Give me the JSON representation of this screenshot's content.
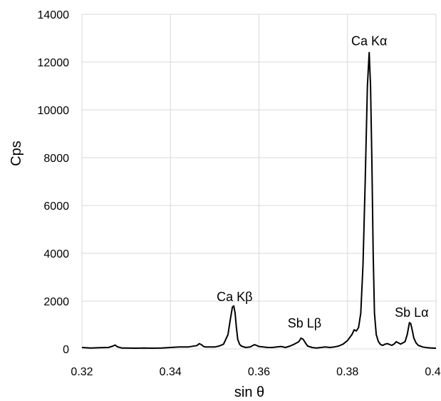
{
  "chart_data": {
    "type": "line",
    "xlabel": "sin θ",
    "ylabel": "Cps",
    "xlim": [
      0.32,
      0.4
    ],
    "ylim": [
      0,
      14000
    ],
    "xticks": [
      0.32,
      0.34,
      0.36,
      0.38,
      0.4
    ],
    "xtick_labels": [
      "0.32",
      "0.34",
      "0.36",
      "0.38",
      "0.40"
    ],
    "yticks": [
      0,
      2000,
      4000,
      6000,
      8000,
      10000,
      12000,
      14000
    ],
    "ytick_labels": [
      "0",
      "2000",
      "4000",
      "6000",
      "8000",
      "10000",
      "12000",
      "14000"
    ],
    "grid": true,
    "series": [
      {
        "x": [
          0.32,
          0.322,
          0.324,
          0.326,
          0.327,
          0.3275,
          0.328,
          0.329,
          0.33,
          0.332,
          0.334,
          0.336,
          0.338,
          0.34,
          0.342,
          0.344,
          0.346,
          0.3465,
          0.347,
          0.3475,
          0.348,
          0.349,
          0.35,
          0.351,
          0.352,
          0.353,
          0.3535,
          0.354,
          0.3543,
          0.3546,
          0.3549,
          0.3552,
          0.3556,
          0.356,
          0.357,
          0.358,
          0.359,
          0.36,
          0.361,
          0.362,
          0.363,
          0.364,
          0.365,
          0.366,
          0.367,
          0.368,
          0.369,
          0.3695,
          0.37,
          0.3705,
          0.371,
          0.372,
          0.373,
          0.374,
          0.375,
          0.376,
          0.377,
          0.378,
          0.379,
          0.38,
          0.381,
          0.3815,
          0.382,
          0.3825,
          0.383,
          0.3835,
          0.384,
          0.3845,
          0.3849,
          0.3852,
          0.3855,
          0.3858,
          0.3861,
          0.3865,
          0.387,
          0.3875,
          0.388,
          0.3885,
          0.389,
          0.39,
          0.3905,
          0.391,
          0.392,
          0.393,
          0.3935,
          0.394,
          0.3943,
          0.3946,
          0.395,
          0.3955,
          0.396,
          0.397,
          0.398,
          0.399,
          0.4
        ],
        "y": [
          60,
          40,
          50,
          60,
          120,
          160,
          90,
          40,
          40,
          30,
          40,
          30,
          40,
          60,
          80,
          80,
          140,
          220,
          180,
          100,
          80,
          80,
          80,
          120,
          200,
          600,
          1200,
          1750,
          1800,
          1500,
          900,
          400,
          200,
          120,
          60,
          80,
          180,
          100,
          80,
          60,
          60,
          80,
          100,
          60,
          120,
          200,
          300,
          450,
          400,
          250,
          120,
          60,
          40,
          60,
          80,
          60,
          80,
          120,
          200,
          350,
          600,
          800,
          750,
          900,
          1500,
          3500,
          7000,
          11000,
          12400,
          11000,
          8000,
          4000,
          1500,
          600,
          300,
          180,
          150,
          200,
          220,
          150,
          200,
          300,
          200,
          300,
          600,
          1100,
          1050,
          800,
          450,
          250,
          150,
          80,
          50,
          40,
          30
        ]
      }
    ],
    "annotations": [
      {
        "text": "Ca Kβ",
        "x": 0.3545,
        "y": 2000
      },
      {
        "text": "Sb Lβ",
        "x": 0.3703,
        "y": 900
      },
      {
        "text": "Ca Kα",
        "x": 0.3849,
        "y": 12700
      },
      {
        "text": "Sb Lα",
        "x": 0.3945,
        "y": 1350
      }
    ],
    "colors": {
      "line": "#000000",
      "grid": "#d9d9d9"
    }
  }
}
